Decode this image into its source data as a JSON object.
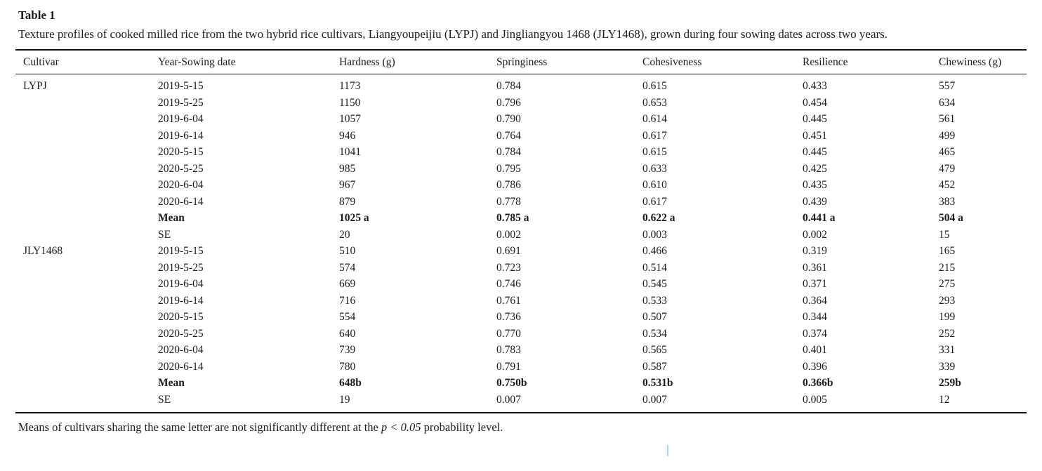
{
  "page": {
    "background": "#ffffff",
    "text_color": "#1c1c1c",
    "rule_color": "#111111"
  },
  "table": {
    "label": "Table 1",
    "caption": "Texture profiles of cooked milled rice from the two hybrid rice cultivars, Liangyoupeijiu (LYPJ) and Jingliangyou 1468 (JLY1468), grown during four sowing dates across two years.",
    "columns": [
      "Cultivar",
      "Year-Sowing date",
      "Hardness (g)",
      "Springiness",
      "Cohesiveness",
      "Resilience",
      "Chewiness (g)"
    ],
    "rows": [
      {
        "bold": false,
        "cells": [
          "LYPJ",
          "2019-5-15",
          "1173",
          "0.784",
          "0.615",
          "0.433",
          "557"
        ]
      },
      {
        "bold": false,
        "cells": [
          "",
          "2019-5-25",
          "1150",
          "0.796",
          "0.653",
          "0.454",
          "634"
        ]
      },
      {
        "bold": false,
        "cells": [
          "",
          "2019-6-04",
          "1057",
          "0.790",
          "0.614",
          "0.445",
          "561"
        ]
      },
      {
        "bold": false,
        "cells": [
          "",
          "2019-6-14",
          "946",
          "0.764",
          "0.617",
          "0.451",
          "499"
        ]
      },
      {
        "bold": false,
        "cells": [
          "",
          "2020-5-15",
          "1041",
          "0.784",
          "0.615",
          "0.445",
          "465"
        ]
      },
      {
        "bold": false,
        "cells": [
          "",
          "2020-5-25",
          "985",
          "0.795",
          "0.633",
          "0.425",
          "479"
        ]
      },
      {
        "bold": false,
        "cells": [
          "",
          "2020-6-04",
          "967",
          "0.786",
          "0.610",
          "0.435",
          "452"
        ]
      },
      {
        "bold": false,
        "cells": [
          "",
          "2020-6-14",
          "879",
          "0.778",
          "0.617",
          "0.439",
          "383"
        ]
      },
      {
        "bold": true,
        "cells": [
          "",
          "Mean",
          "1025 a",
          "0.785 a",
          "0.622 a",
          "0.441 a",
          "504 a"
        ]
      },
      {
        "bold": false,
        "cells": [
          "",
          "SE",
          "20",
          "0.002",
          "0.003",
          "0.002",
          "15"
        ]
      },
      {
        "bold": false,
        "cells": [
          "JLY1468",
          "2019-5-15",
          "510",
          "0.691",
          "0.466",
          "0.319",
          "165"
        ]
      },
      {
        "bold": false,
        "cells": [
          "",
          "2019-5-25",
          "574",
          "0.723",
          "0.514",
          "0.361",
          "215"
        ]
      },
      {
        "bold": false,
        "cells": [
          "",
          "2019-6-04",
          "669",
          "0.746",
          "0.545",
          "0.371",
          "275"
        ]
      },
      {
        "bold": false,
        "cells": [
          "",
          "2019-6-14",
          "716",
          "0.761",
          "0.533",
          "0.364",
          "293"
        ]
      },
      {
        "bold": false,
        "cells": [
          "",
          "2020-5-15",
          "554",
          "0.736",
          "0.507",
          "0.344",
          "199"
        ]
      },
      {
        "bold": false,
        "cells": [
          "",
          "2020-5-25",
          "640",
          "0.770",
          "0.534",
          "0.374",
          "252"
        ]
      },
      {
        "bold": false,
        "cells": [
          "",
          "2020-6-04",
          "739",
          "0.783",
          "0.565",
          "0.401",
          "331"
        ]
      },
      {
        "bold": false,
        "cells": [
          "",
          "2020-6-14",
          "780",
          "0.791",
          "0.587",
          "0.396",
          "339"
        ]
      },
      {
        "bold": true,
        "cells": [
          "",
          "Mean",
          "648b",
          "0.750b",
          "0.531b",
          "0.366b",
          "259b"
        ]
      },
      {
        "bold": false,
        "cells": [
          "",
          "SE",
          "19",
          "0.007",
          "0.007",
          "0.005",
          "12"
        ]
      }
    ],
    "footnote": {
      "prefix": "Means of cultivars sharing the same letter are not significantly different at the ",
      "italic": "p < 0.05",
      "suffix": " probability level."
    }
  }
}
